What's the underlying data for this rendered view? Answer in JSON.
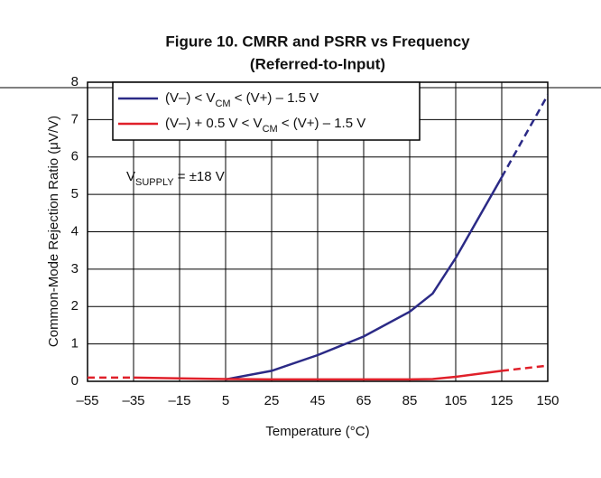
{
  "chart_data": {
    "type": "line",
    "title": "Figure 10. CMRR and PSRR vs Frequency",
    "subtitle": "(Referred-to-Input)",
    "x_label": "Temperature (°C)",
    "y_label": "Common-Mode Rejection Ratio (μV/V)",
    "annotation": "VSUPPLY = ±18 V",
    "annotation_subscript": "SUPPLY",
    "xlim": [
      -55,
      150
    ],
    "xticks": [
      {
        "value": -55,
        "label": "–55"
      },
      {
        "value": -35,
        "label": "–35"
      },
      {
        "value": -15,
        "label": "–15"
      },
      5,
      25,
      45,
      65,
      85,
      105,
      125,
      150
    ],
    "ylim": [
      0,
      8
    ],
    "yticks": [
      0,
      1,
      2,
      3,
      4,
      5,
      6,
      7,
      8
    ],
    "grid": true,
    "legend": "top-left",
    "series": [
      {
        "name": "(V–) < VCM < (V+) – 1.5 V",
        "subscript": "CM",
        "color": "#2b2a86",
        "x": [
          5,
          25,
          45,
          65,
          85,
          95,
          105,
          125,
          150
        ],
        "values": [
          0.05,
          0.28,
          0.7,
          1.2,
          1.86,
          2.35,
          3.3,
          5.46,
          7.66
        ],
        "dashed_after": 125
      },
      {
        "name": "(V–) + 0.5 V < VCM < (V+) – 1.5 V",
        "subscript": "CM",
        "color": "#e0202a",
        "x": [
          -55,
          -35,
          -15,
          5,
          25,
          45,
          65,
          85,
          95,
          105,
          125,
          150
        ],
        "values": [
          0.1,
          0.1,
          0.08,
          0.06,
          0.05,
          0.05,
          0.05,
          0.05,
          0.06,
          0.12,
          0.28,
          0.42
        ],
        "dashed_before": -35,
        "dashed_after": 125
      }
    ]
  }
}
